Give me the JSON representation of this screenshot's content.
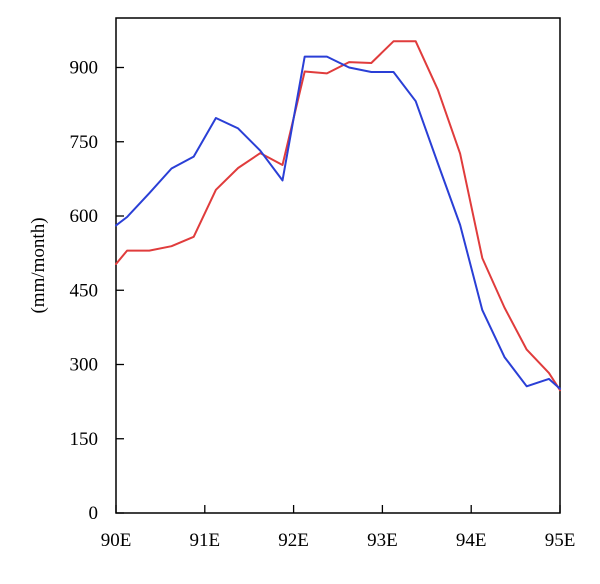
{
  "chart_data": {
    "type": "line",
    "title": "",
    "xlabel": "",
    "ylabel": "(mm/month)",
    "xlim": [
      90,
      95
    ],
    "ylim": [
      0,
      1000
    ],
    "x_ticks": [
      90,
      91,
      92,
      93,
      94,
      95
    ],
    "x_tick_labels": [
      "90E",
      "91E",
      "92E",
      "93E",
      "94E",
      "95E"
    ],
    "y_ticks": [
      0,
      150,
      300,
      450,
      600,
      750,
      900
    ],
    "y_tick_labels": [
      "0",
      "150",
      "300",
      "450",
      "600",
      "750",
      "900"
    ],
    "grid": false,
    "legend": "none",
    "series": [
      {
        "color": "#e03c3c",
        "x": [
          90.0,
          90.125,
          90.375,
          90.625,
          90.875,
          91.125,
          91.375,
          91.625,
          91.875,
          92.125,
          92.375,
          92.625,
          92.875,
          93.125,
          93.375,
          93.625,
          93.875,
          94.125,
          94.375,
          94.625,
          94.875,
          95.0
        ],
        "y": [
          503,
          530,
          530,
          539,
          558,
          653,
          697,
          727,
          703,
          892,
          888,
          911,
          909,
          953,
          953,
          855,
          726,
          515,
          415,
          330,
          283,
          248
        ]
      },
      {
        "color": "#2a3fd6",
        "x": [
          90.0,
          90.125,
          90.375,
          90.625,
          90.875,
          91.125,
          91.375,
          91.625,
          91.875,
          92.125,
          92.375,
          92.625,
          92.875,
          93.125,
          93.375,
          93.625,
          93.875,
          94.125,
          94.375,
          94.625,
          94.875,
          95.0
        ],
        "y": [
          581,
          598,
          646,
          696,
          720,
          798,
          777,
          732,
          672,
          922,
          922,
          900,
          891,
          891,
          832,
          706,
          582,
          410,
          315,
          256,
          271,
          251
        ]
      }
    ]
  }
}
